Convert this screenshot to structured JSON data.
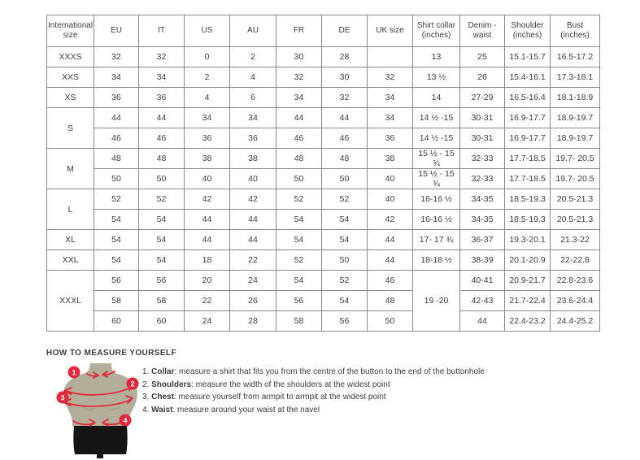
{
  "colors": {
    "accent_red": "#e2293b",
    "mannequin_body": "#b2ae99",
    "mannequin_shorts": "#151515",
    "table_border": "#8a8a8a",
    "text": "#3d3d3c"
  },
  "table": {
    "headers": [
      "International size",
      "EU",
      "IT",
      "US",
      "AU",
      "FR",
      "DE",
      "UK size",
      "Shirt collar (inches)",
      "Denim - waist",
      "Shoulder (inches)",
      "Bust (inches)"
    ],
    "rows": [
      [
        {
          "t": "XXXS"
        },
        "32",
        "32",
        "0",
        "2",
        "30",
        "28",
        "",
        "13",
        "25",
        "15.1-15.7",
        "16.5-17.2"
      ],
      [
        {
          "t": "XXS"
        },
        "34",
        "34",
        "2",
        "4",
        "32",
        "30",
        "32",
        "13 ½",
        "26",
        "15.4-16.1",
        "17.3-18.1"
      ],
      [
        {
          "t": "XS"
        },
        "36",
        "36",
        "4",
        "6",
        "34",
        "32",
        "34",
        "14",
        "27-29",
        "16.5-16.4",
        "18.1-18.9"
      ],
      [
        {
          "t": "S",
          "rs": 2
        },
        "44",
        "44",
        "34",
        "34",
        "44",
        "44",
        "34",
        "14 ½ -15",
        "30-31",
        "16.9-17.7",
        "18.9-19.7"
      ],
      [
        "46",
        "46",
        "36",
        "36",
        "46",
        "46",
        "36",
        "14 ½ -15",
        "30-31",
        "16.9-17.7",
        "18.9-19.7"
      ],
      [
        {
          "t": "M",
          "rs": 2
        },
        "48",
        "48",
        "38",
        "38",
        "48",
        "48",
        "38",
        "15 ½ - 15 ¾",
        "32-33",
        "17.7-18.5",
        "19.7- 20.5"
      ],
      [
        "50",
        "50",
        "40",
        "40",
        "50",
        "50",
        "40",
        "15 ½ - 15 ¾",
        "32-33",
        "17.7-18.5",
        "19.7- 20.5"
      ],
      [
        {
          "t": "L",
          "rs": 2
        },
        "52",
        "52",
        "42",
        "42",
        "52",
        "52",
        "40",
        "16-16 ½",
        "34-35",
        "18.5-19.3",
        "20.5-21.3"
      ],
      [
        "54",
        "54",
        "44",
        "44",
        "54",
        "54",
        "42",
        "16-16 ½",
        "34-35",
        "18.5-19.3",
        "20.5-21.3"
      ],
      [
        {
          "t": "XL"
        },
        "54",
        "54",
        "44",
        "44",
        "54",
        "54",
        "44",
        "17- 17 ¾",
        "36-37",
        "19.3-20.1",
        "21.3-22"
      ],
      [
        {
          "t": "XXL"
        },
        "54",
        "54",
        "18",
        "22",
        "52",
        "50",
        "44",
        "18-18 ½",
        "38-39",
        "20.1-20.9",
        "22-22.8"
      ],
      [
        {
          "t": "XXXL",
          "rs": 3
        },
        "56",
        "56",
        "20",
        "24",
        "54",
        "52",
        "46",
        {
          "t": "19 -20",
          "rs": 3
        },
        "40-41",
        "20.9-21.7",
        "22.8-23.6"
      ],
      [
        "58",
        "58",
        "22",
        "26",
        "56",
        "54",
        "48",
        "42-43",
        "21.7-22.4",
        "23.6-24.4"
      ],
      [
        "60",
        "60",
        "24",
        "28",
        "58",
        "56",
        "50",
        "44",
        "22.4-23.2",
        "24.4-25.2"
      ]
    ]
  },
  "measure": {
    "title": "HOW TO MEASURE YOURSELF",
    "steps": [
      {
        "num": "1. ",
        "label": "Collar",
        "text": ": measure a shirt that fits you from the centre of the button to the end of the buttonhole"
      },
      {
        "num": "2. ",
        "label": "Shoulders",
        "text": ": measure the width of the shoulders at the widest point"
      },
      {
        "num": "3. ",
        "label": "Chest",
        "text": ": measure yourself from armpit to armpit at the widest point"
      },
      {
        "num": "4. ",
        "label": "Waist",
        "text": ": measure around your waist at the navel"
      }
    ],
    "badges": [
      "1",
      "2",
      "3",
      "4"
    ]
  }
}
